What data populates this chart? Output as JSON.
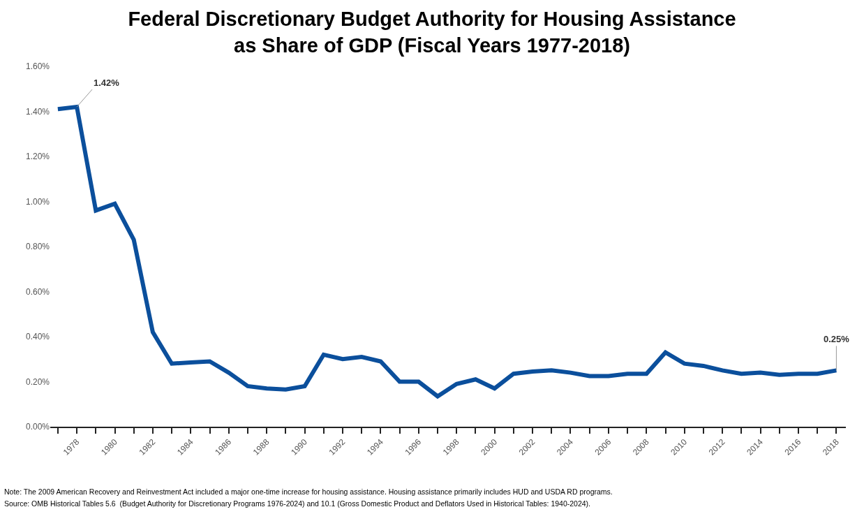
{
  "chart_data": {
    "type": "line",
    "title": "Federal Discretionary Budget Authority for Housing Assistance\nas Share of GDP (Fiscal Years 1977-2018)",
    "x": [
      1977,
      1978,
      1979,
      1980,
      1981,
      1982,
      1983,
      1984,
      1985,
      1986,
      1987,
      1988,
      1989,
      1990,
      1991,
      1992,
      1993,
      1994,
      1995,
      1996,
      1997,
      1998,
      1999,
      2000,
      2001,
      2002,
      2003,
      2004,
      2005,
      2006,
      2007,
      2008,
      2009,
      2010,
      2011,
      2012,
      2013,
      2014,
      2015,
      2016,
      2017,
      2018
    ],
    "series": [
      {
        "color": "#0b4f9c",
        "values": [
          1.41,
          1.42,
          0.96,
          0.99,
          0.83,
          0.42,
          0.28,
          0.285,
          0.29,
          0.24,
          0.18,
          0.17,
          0.165,
          0.18,
          0.32,
          0.3,
          0.31,
          0.29,
          0.2,
          0.2,
          0.135,
          0.19,
          0.21,
          0.17,
          0.235,
          0.245,
          0.25,
          0.24,
          0.225,
          0.225,
          0.235,
          0.235,
          0.33,
          0.28,
          0.27,
          0.25,
          0.235,
          0.24,
          0.23,
          0.235,
          0.235,
          0.25
        ]
      }
    ],
    "xlim": [
      1976.6,
      2018.5
    ],
    "xticks": [
      {
        "value": 1977,
        "label": null
      },
      1978,
      {
        "value": 1979,
        "label": null
      },
      1980,
      {
        "value": 1981,
        "label": null
      },
      1982,
      {
        "value": 1983,
        "label": null
      },
      1984,
      {
        "value": 1985,
        "label": null
      },
      1986,
      {
        "value": 1987,
        "label": null
      },
      1988,
      {
        "value": 1989,
        "label": null
      },
      1990,
      {
        "value": 1991,
        "label": null
      },
      1992,
      {
        "value": 1993,
        "label": null
      },
      1994,
      {
        "value": 1995,
        "label": null
      },
      1996,
      {
        "value": 1997,
        "label": null
      },
      1998,
      {
        "value": 1999,
        "label": null
      },
      2000,
      {
        "value": 2001,
        "label": null
      },
      2002,
      {
        "value": 2003,
        "label": null
      },
      2004,
      {
        "value": 2005,
        "label": null
      },
      2006,
      {
        "value": 2007,
        "label": null
      },
      2008,
      {
        "value": 2009,
        "label": null
      },
      2010,
      {
        "value": 2011,
        "label": null
      },
      2012,
      {
        "value": 2013,
        "label": null
      },
      2014,
      {
        "value": 2015,
        "label": null
      },
      2016,
      {
        "value": 2017,
        "label": null
      },
      2018
    ],
    "ylim": [
      0,
      1.6
    ],
    "yticks": [
      {
        "value": 0,
        "label": "0.00%"
      },
      {
        "value": 0.2,
        "label": "0.20%"
      },
      {
        "value": 0.4,
        "label": "0.40%"
      },
      {
        "value": 0.6,
        "label": "0.60%"
      },
      {
        "value": 0.8,
        "label": "0.80%"
      },
      {
        "value": 1.0,
        "label": "1.00%"
      },
      {
        "value": 1.2,
        "label": "1.20%"
      },
      {
        "value": 1.4,
        "label": "1.40%"
      },
      {
        "value": 1.6,
        "label": "1.60%"
      }
    ],
    "annotations": [
      {
        "text": "1.42%",
        "x": 1978,
        "y": 1.42
      },
      {
        "text": "0.25%",
        "x": 2018,
        "y": 0.25
      },
      "Note: The 2009 American Recovery and Reinvestment Act included a major one-time increase for housing assistance. Housing assistance primarily includes HUD and USDA RD programs.",
      "Source: OMB Historical Tables 5.6  (Budget Authority for Discretionary Programs 1976-2024) and 10.1 (Gross Domestic Product and Deflators Used in Historical Tables: 1940-2024)."
    ],
    "grid": false,
    "legend": false,
    "marker": "none",
    "line_style": "solid"
  }
}
